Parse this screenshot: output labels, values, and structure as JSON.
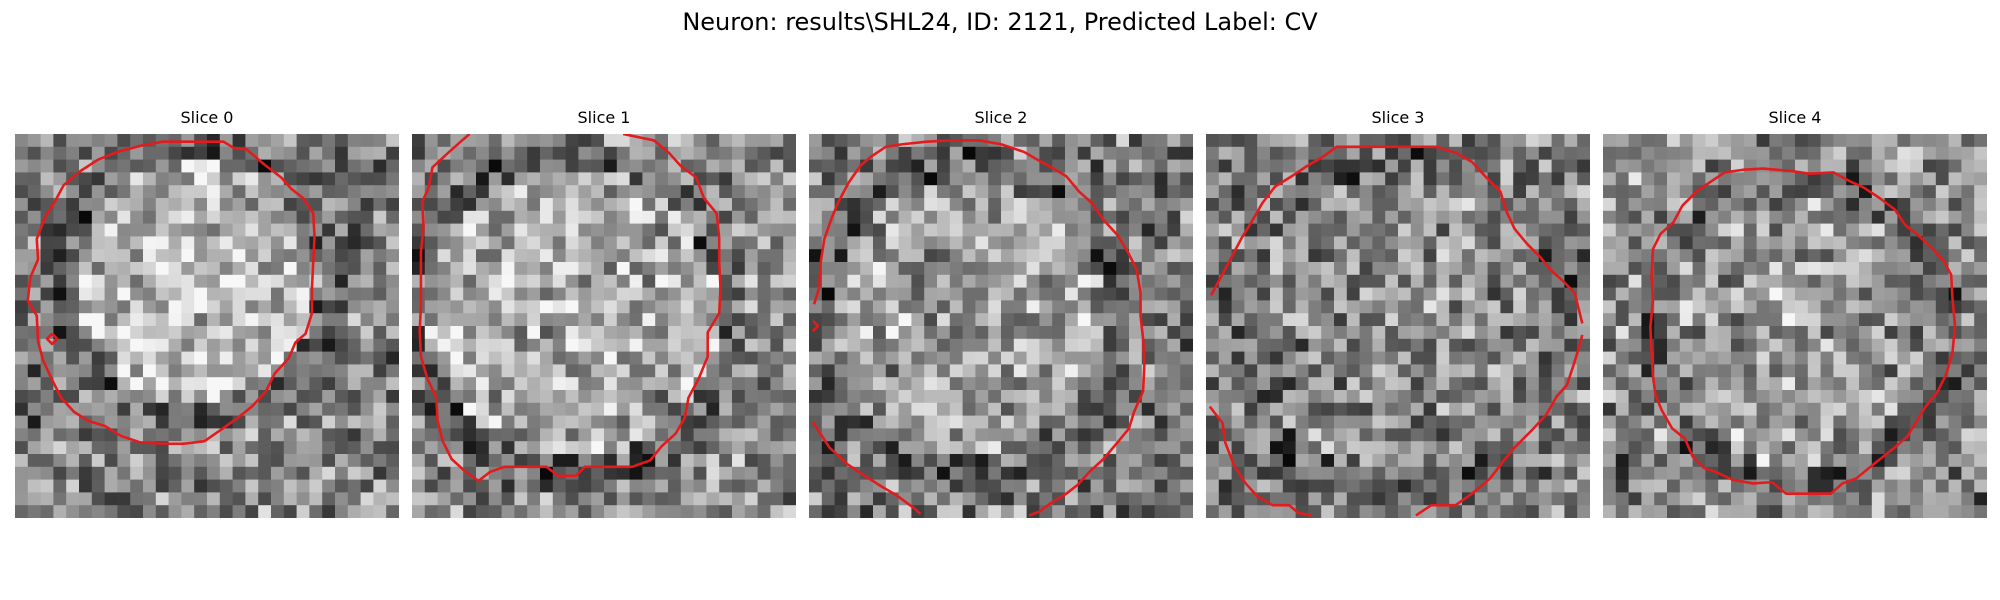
{
  "figure": {
    "title": "Neuron: results\\SHL24, ID: 2121, Predicted Label: CV"
  },
  "colors": {
    "contour": "#e41a1c",
    "background": "#ffffff"
  },
  "colormap": "gray",
  "panels": [
    {
      "title": "Slice 0"
    },
    {
      "title": "Slice 1"
    },
    {
      "title": "Slice 2"
    },
    {
      "title": "Slice 3"
    },
    {
      "title": "Slice 4"
    }
  ]
}
